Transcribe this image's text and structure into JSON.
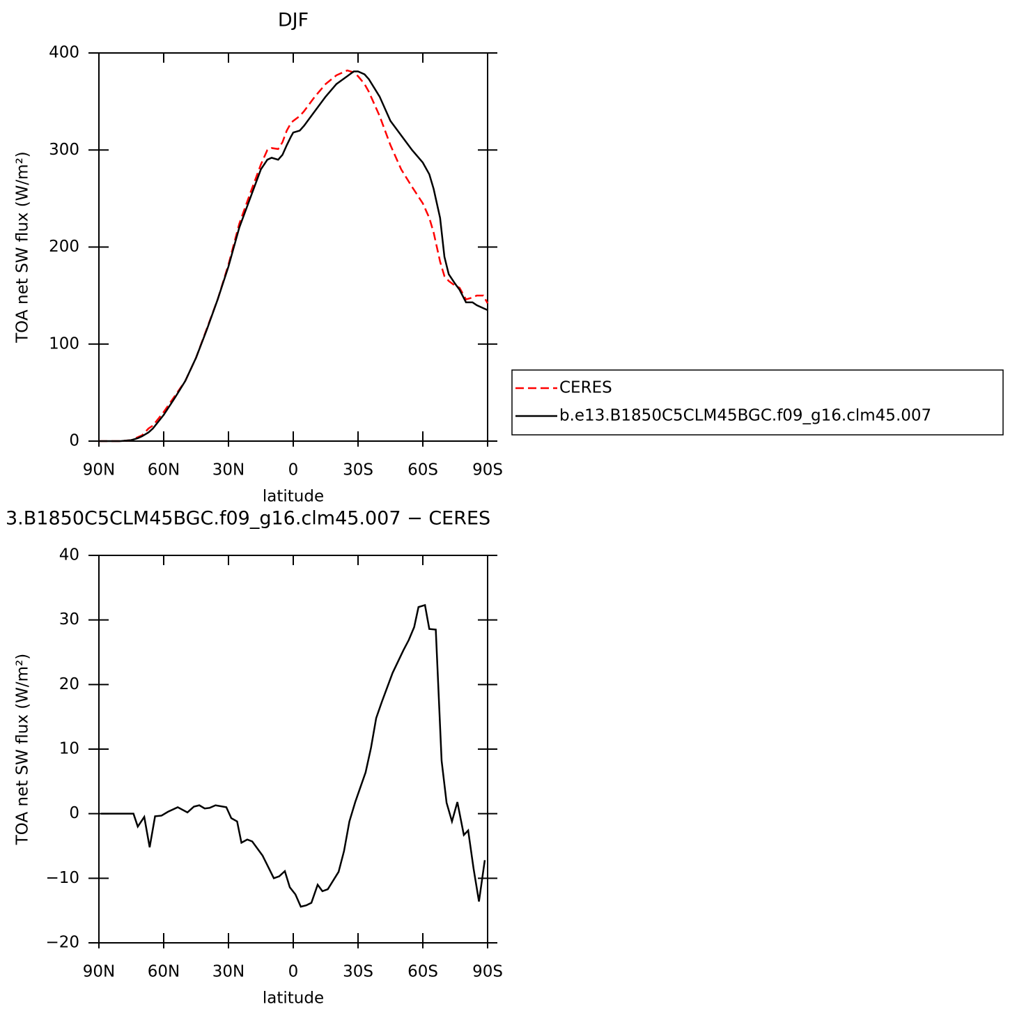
{
  "chart_data": [
    {
      "type": "line",
      "title": "DJF",
      "xlabel": "latitude",
      "ylabel": "TOA net SW flux (W/m²)",
      "x": [
        90,
        85,
        80,
        75,
        72,
        70,
        67,
        65,
        60,
        55,
        50,
        45,
        40,
        35,
        30,
        25,
        20,
        15,
        12,
        10,
        7,
        5,
        3,
        1,
        0,
        -3,
        -5,
        -10,
        -15,
        -20,
        -25,
        -28,
        -30,
        -33,
        -35,
        -40,
        -45,
        -50,
        -55,
        -60,
        -63,
        -65,
        -68,
        -70,
        -72,
        -75,
        -77,
        -80,
        -83,
        -85,
        -88,
        -90
      ],
      "series": [
        {
          "name": "CERES",
          "color": "#ff0000",
          "line_style": "dashed",
          "values": [
            0,
            0,
            0,
            1,
            4,
            6,
            13,
            16,
            30,
            46,
            62,
            86,
            116,
            146,
            182,
            224,
            255,
            285,
            300,
            302,
            301,
            308,
            320,
            328,
            330,
            335,
            340,
            355,
            368,
            377,
            382,
            380,
            376,
            368,
            360,
            335,
            305,
            280,
            262,
            245,
            230,
            215,
            185,
            170,
            165,
            160,
            158,
            146,
            148,
            150,
            150,
            142
          ]
        },
        {
          "name": "b.e13.B1850C5CLM45BGC.f09_g16.clm45.007",
          "color": "#000000",
          "line_style": "solid",
          "values": [
            0,
            0,
            0,
            1,
            3,
            5,
            9,
            13,
            27,
            44,
            62,
            86,
            115,
            146,
            180,
            220,
            250,
            280,
            290,
            292,
            290,
            295,
            305,
            314,
            318,
            320,
            325,
            340,
            355,
            368,
            376,
            381,
            381,
            378,
            373,
            355,
            330,
            315,
            300,
            287,
            275,
            260,
            230,
            190,
            172,
            162,
            156,
            143,
            143,
            140,
            137,
            135
          ]
        }
      ],
      "xlim": [
        90,
        -90
      ],
      "xticks": [
        {
          "value": 90,
          "label": "90N"
        },
        {
          "value": 60,
          "label": "60N"
        },
        {
          "value": 30,
          "label": "30N"
        },
        0,
        {
          "value": -30,
          "label": "30S"
        },
        {
          "value": -60,
          "label": "60S"
        },
        {
          "value": -90,
          "label": "90S"
        }
      ],
      "ylim": [
        0,
        400
      ],
      "yticks": [
        0,
        100,
        200,
        300,
        400
      ],
      "legend": "right"
    },
    {
      "type": "line",
      "title": "3.B1850C5CLM45BGC.f09_g16.clm45.007 − CERES",
      "xlabel": "latitude",
      "ylabel": "TOA net SW flux (W/m²)",
      "x": [
        89,
        74,
        72,
        69,
        66.5,
        64,
        61,
        58,
        53.5,
        49,
        46,
        43.5,
        41,
        38.7,
        36,
        31,
        28.7,
        26,
        24,
        21.3,
        19,
        14.2,
        9,
        6.5,
        3.9,
        1.6,
        -1,
        -3.5,
        -6,
        -8.4,
        -11.3,
        -13.5,
        -16,
        -21,
        -23.5,
        -26,
        -28.7,
        -31,
        -33.5,
        -36,
        -38.4,
        -41,
        -46,
        -51,
        -53.5,
        -56,
        -58,
        -61,
        -63,
        -66,
        -68.7,
        -71,
        -73.5,
        -76,
        -79,
        -81,
        -83.5,
        -86,
        -88.7
      ],
      "color": "#000000",
      "values": [
        0,
        0,
        -2,
        -0.5,
        -5.2,
        -0.4,
        -0.3,
        0.3,
        1,
        0.2,
        1.1,
        1.3,
        0.8,
        0.9,
        1.3,
        1,
        -0.7,
        -1.2,
        -4.5,
        -4,
        -4.3,
        -6.5,
        -10,
        -9.7,
        -8.9,
        -11.4,
        -12.5,
        -14.4,
        -14.2,
        -13.8,
        -11,
        -12,
        -11.7,
        -9,
        -5.8,
        -1.2,
        1.8,
        4,
        6.4,
        10.2,
        14.8,
        17.3,
        21.8,
        25.3,
        26.9,
        28.9,
        32,
        32.3,
        28.6,
        28.5,
        8.2,
        1.7,
        -1.2,
        1.8,
        -3.3,
        -2.6,
        -8.5,
        -13.6,
        -7.2
      ],
      "xlim": [
        90,
        -90
      ],
      "xticks": [
        {
          "value": 90,
          "label": "90N"
        },
        {
          "value": 60,
          "label": "60N"
        },
        {
          "value": 30,
          "label": "30N"
        },
        0,
        {
          "value": -30,
          "label": "30S"
        },
        {
          "value": -60,
          "label": "60S"
        },
        {
          "value": -90,
          "label": "90S"
        }
      ],
      "ylim": [
        -20,
        40
      ],
      "yticks": [
        {
          "value": -20,
          "label": "−20"
        },
        {
          "value": -10,
          "label": "−10"
        },
        0,
        10,
        20,
        30,
        40
      ]
    }
  ]
}
